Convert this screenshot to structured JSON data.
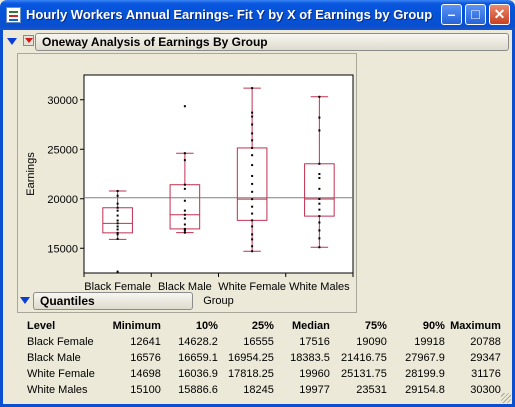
{
  "window": {
    "title": "Hourly Workers Annual Earnings- Fit Y by X of Earnings by Group"
  },
  "oneway": {
    "title": "Oneway Analysis of Earnings By Group"
  },
  "chart_data": {
    "type": "box",
    "ylabel": "Earnings",
    "xlabel": "Group",
    "ylim": [
      12500,
      32500
    ],
    "yticks": [
      15000,
      20000,
      25000,
      30000
    ],
    "ytick_labels": [
      "15000",
      "20000",
      "25000",
      "30000"
    ],
    "categories": [
      "Black Female",
      "Black Male",
      "White Female",
      "White Males"
    ],
    "grand_mean": 20100,
    "boxes": [
      {
        "name": "Black Female",
        "min": 12641,
        "q1": 16555,
        "median": 17516,
        "q3": 19090,
        "max": 20788,
        "whisker_low": 15900,
        "whisker_high": 20788,
        "points": [
          12641,
          15950,
          16400,
          16555,
          16900,
          17200,
          17516,
          17800,
          18300,
          18800,
          19090,
          19500,
          20300,
          20788
        ]
      },
      {
        "name": "Black Male",
        "min": 16576,
        "q1": 16954.25,
        "median": 18383.5,
        "q3": 21416.75,
        "max": 29347,
        "whisker_low": 16576,
        "whisker_high": 24600,
        "points": [
          16576,
          16800,
          16954,
          17400,
          18000,
          18383,
          18800,
          19800,
          21000,
          21416,
          23900,
          24600,
          29347
        ]
      },
      {
        "name": "White Female",
        "min": 14698,
        "q1": 17818.25,
        "median": 19960,
        "q3": 25131.75,
        "max": 31176,
        "whisker_low": 14698,
        "whisker_high": 31176,
        "points": [
          14698,
          15200,
          15900,
          16400,
          17200,
          17818,
          18500,
          19200,
          19960,
          20700,
          21500,
          22300,
          23400,
          24400,
          25131,
          25900,
          26600,
          27500,
          28300,
          28700,
          31176
        ]
      },
      {
        "name": "White Males",
        "min": 15100,
        "q1": 18245,
        "median": 19977,
        "q3": 23531,
        "max": 30300,
        "whisker_low": 15100,
        "whisker_high": 30300,
        "points": [
          15100,
          16000,
          16800,
          17600,
          18245,
          18900,
          19500,
          19977,
          21000,
          22100,
          22500,
          23531,
          26900,
          28200,
          30300
        ]
      }
    ]
  },
  "quantiles": {
    "title": "Quantiles",
    "headers": [
      "Level",
      "Minimum",
      "10%",
      "25%",
      "Median",
      "75%",
      "90%",
      "Maximum"
    ],
    "rows": [
      [
        "Black Female",
        "12641",
        "14628.2",
        "16555",
        "17516",
        "19090",
        "19918",
        "20788"
      ],
      [
        "Black Male",
        "16576",
        "16659.1",
        "16954.25",
        "18383.5",
        "21416.75",
        "27967.9",
        "29347"
      ],
      [
        "White Female",
        "14698",
        "16036.9",
        "17818.25",
        "19960",
        "25131.75",
        "28199.9",
        "31176"
      ],
      [
        "White Males",
        "15100",
        "15886.6",
        "18245",
        "19977",
        "23531",
        "29154.8",
        "30300"
      ]
    ]
  },
  "colors": {
    "title_bar": "#0a4fd0",
    "box": "#c03050",
    "mean_line": "#808080",
    "points": "#000000",
    "disclosure": "#0b3cd6",
    "menu_triangle": "#d01818"
  }
}
